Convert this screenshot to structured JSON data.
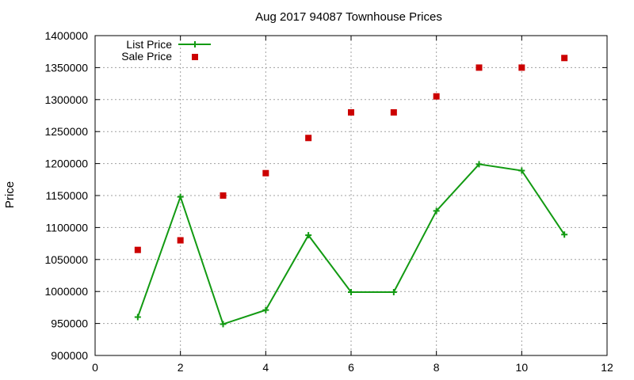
{
  "chart_data": {
    "type": "line",
    "title": "Aug 2017 94087 Townhouse Prices",
    "xlabel": "",
    "ylabel": "Price",
    "xlim": [
      0,
      12
    ],
    "ylim": [
      900000,
      1400000
    ],
    "xticks": [
      0,
      2,
      4,
      6,
      8,
      10,
      12
    ],
    "yticks": [
      900000,
      950000,
      1000000,
      1050000,
      1100000,
      1150000,
      1200000,
      1250000,
      1300000,
      1350000,
      1400000
    ],
    "grid": true,
    "legend_position": "top-left",
    "series": [
      {
        "name": "List Price",
        "style": "line-with-cross-markers",
        "color": "#129a12",
        "x": [
          1,
          2,
          3,
          4,
          5,
          6,
          7,
          8,
          9,
          10,
          11
        ],
        "y": [
          960000,
          1148000,
          949000,
          971000,
          1088000,
          999000,
          999000,
          1126000,
          1199000,
          1189000,
          1089000
        ]
      },
      {
        "name": "Sale Price",
        "style": "square-markers",
        "color": "#cc0000",
        "x": [
          1,
          2,
          3,
          4,
          5,
          6,
          7,
          8,
          9,
          10,
          11
        ],
        "y": [
          1065000,
          1080000,
          1150000,
          1185000,
          1240000,
          1280000,
          1280000,
          1305000,
          1350000,
          1350000,
          1365000
        ]
      }
    ]
  }
}
